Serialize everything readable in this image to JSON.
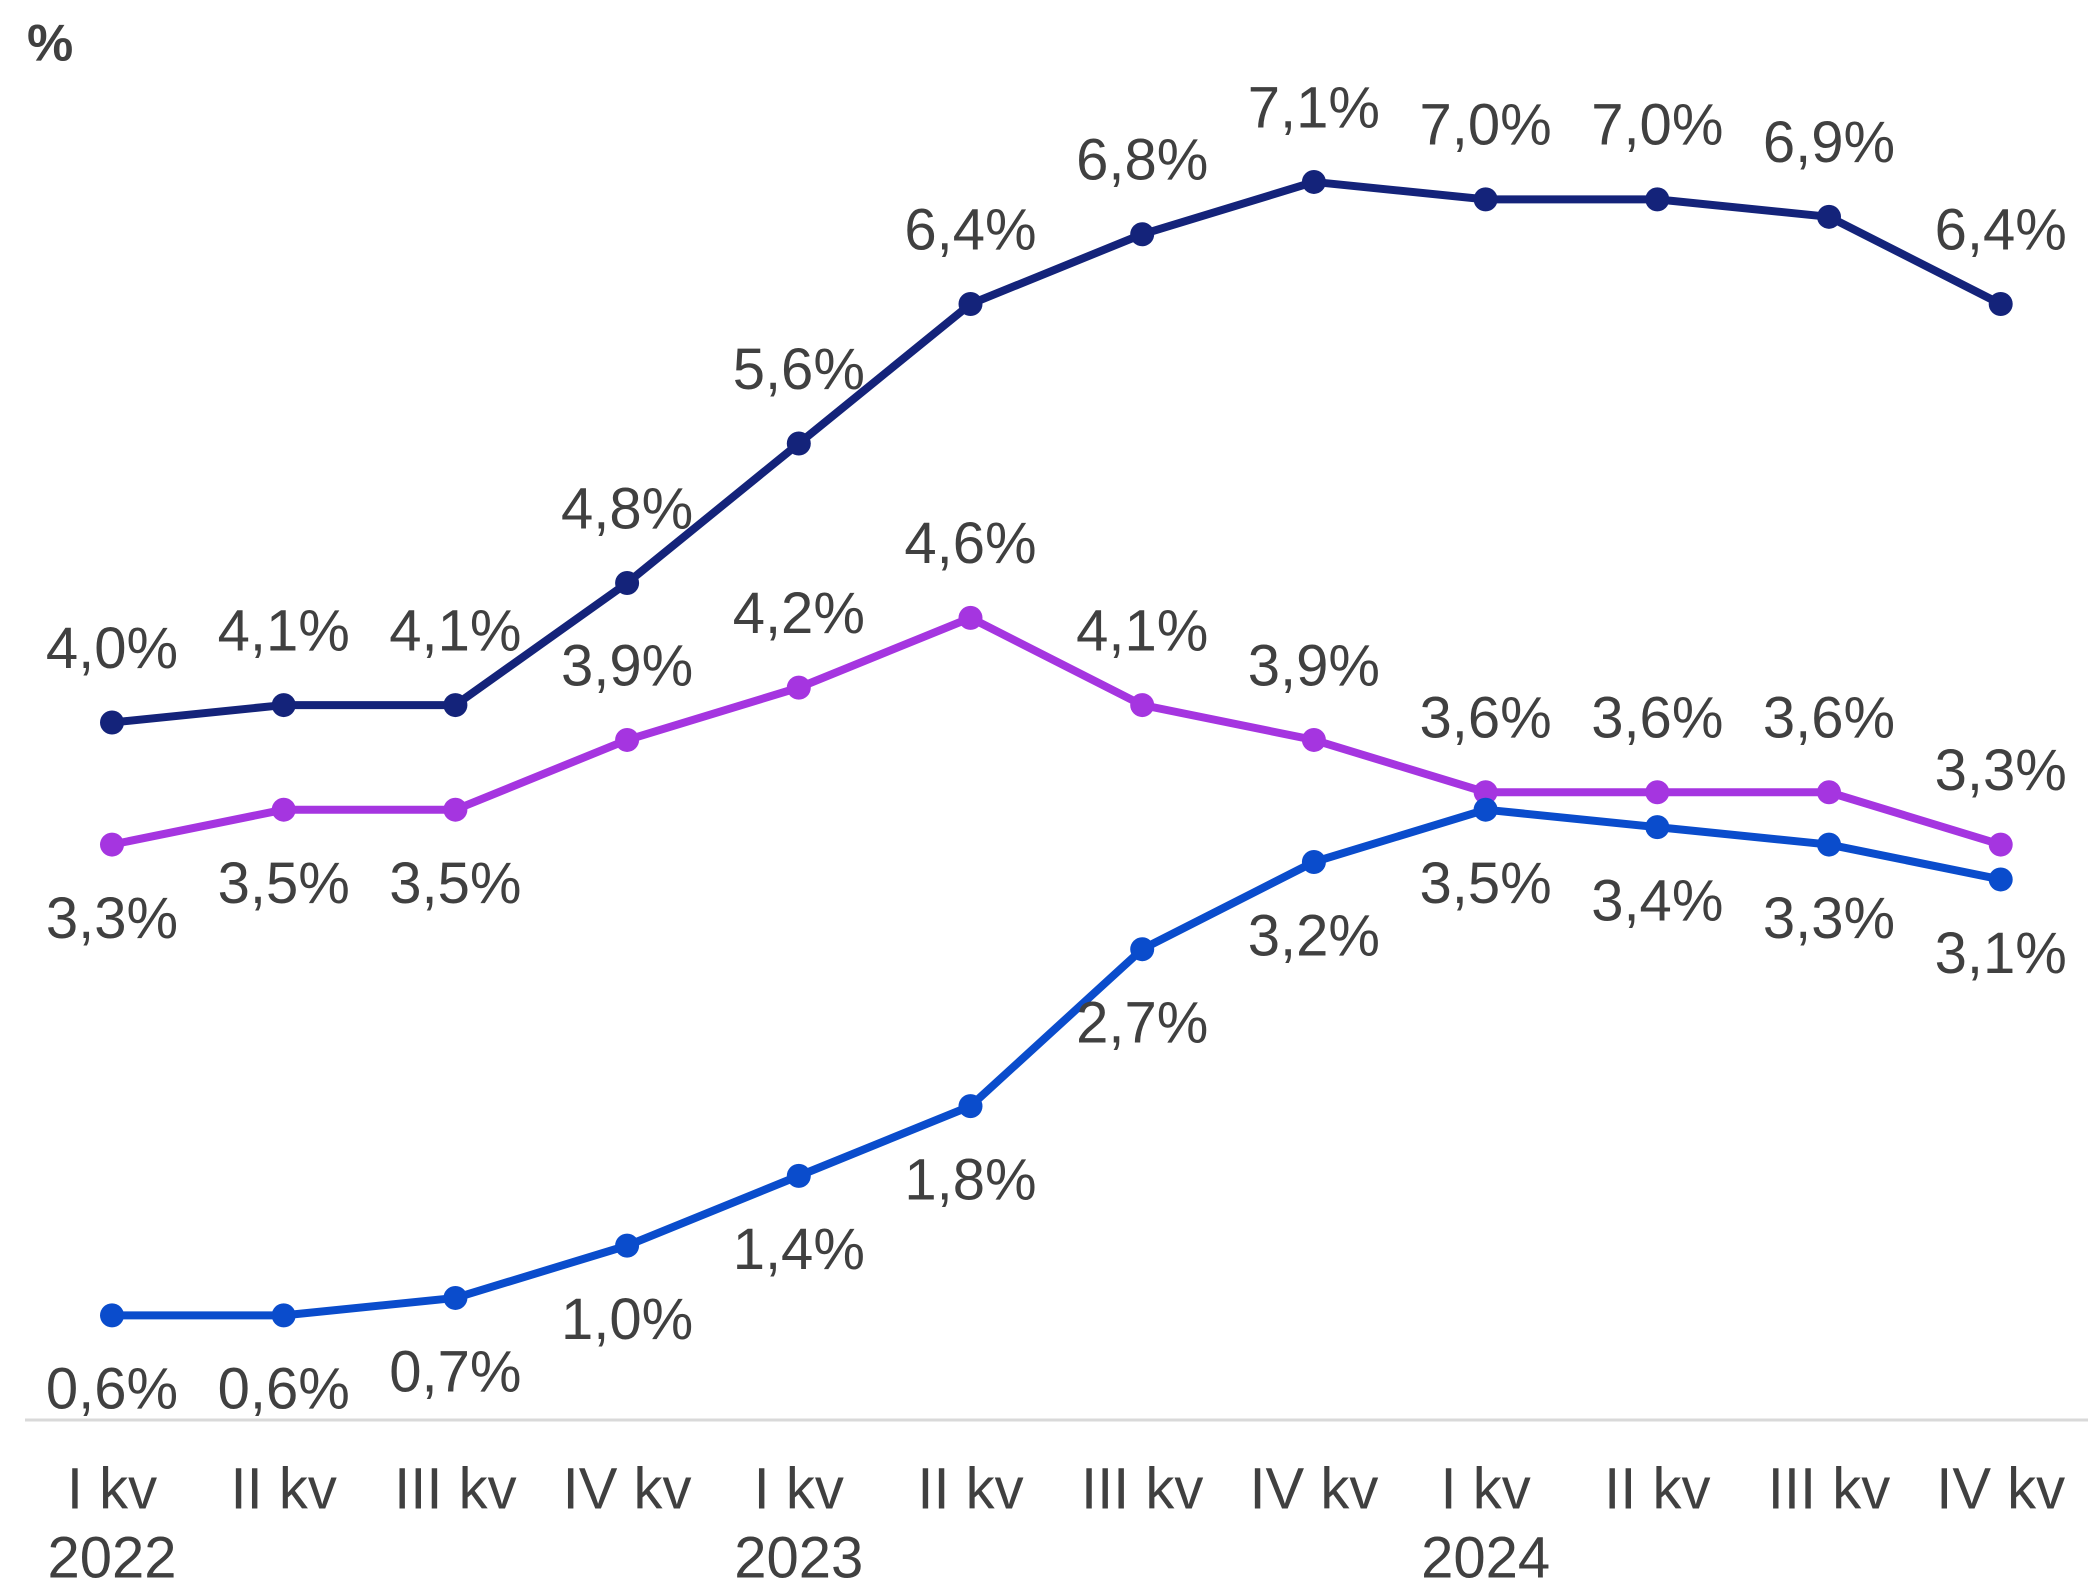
{
  "chart_data": {
    "type": "line",
    "unit_label": "%",
    "categories": [
      "I kv",
      "II kv",
      "III kv",
      "IV kv",
      "I kv",
      "II kv",
      "III kv",
      "IV kv",
      "I kv",
      "II kv",
      "III kv",
      "IV kv"
    ],
    "year_labels": [
      "2022",
      null,
      null,
      null,
      "2023",
      null,
      null,
      null,
      "2024",
      null,
      null,
      null
    ],
    "ylim": [
      0,
      8
    ],
    "series": [
      {
        "color": "#14237a",
        "values": [
          4.0,
          4.1,
          4.1,
          4.8,
          5.6,
          6.4,
          6.8,
          7.1,
          7.0,
          7.0,
          6.9,
          6.4
        ],
        "value_labels": [
          "4,0%",
          "4,1%",
          "4,1%",
          "4,8%",
          "5,6%",
          "6,4%",
          "6,8%",
          "7,1%",
          "7,0%",
          "7,0%",
          "6,9%",
          "6,4%"
        ],
        "label_positions": [
          "above",
          "above",
          "above",
          "above",
          "above",
          "above",
          "above",
          "above",
          "above",
          "above",
          "above",
          "above"
        ]
      },
      {
        "color": "#a535e0",
        "values": [
          3.3,
          3.5,
          3.5,
          3.9,
          4.2,
          4.6,
          4.1,
          3.9,
          3.6,
          3.6,
          3.6,
          3.3
        ],
        "value_labels": [
          "3,3%",
          "3,5%",
          "3,5%",
          "3,9%",
          "4,2%",
          "4,6%",
          "4,1%",
          "3,9%",
          "3,6%",
          "3,6%",
          "3,6%",
          "3,3%"
        ],
        "label_positions": [
          "below",
          "below",
          "below",
          "above",
          "above",
          "above",
          "above",
          "above",
          "above",
          "above",
          "above",
          "above"
        ]
      },
      {
        "color": "#0a4ccc",
        "values": [
          0.6,
          0.6,
          0.7,
          1.0,
          1.4,
          1.8,
          2.7,
          3.2,
          3.5,
          3.4,
          3.3,
          3.1
        ],
        "value_labels": [
          "0,6%",
          "0,6%",
          "0,7%",
          "1,0%",
          "1,4%",
          "1,8%",
          "2,7%",
          "3,2%",
          "3,5%",
          "3,4%",
          "3,3%",
          "3,1%"
        ],
        "label_positions": [
          "below",
          "below",
          "below",
          "below",
          "below",
          "below",
          "below",
          "below",
          "below",
          "below",
          "below",
          "below"
        ]
      }
    ]
  }
}
